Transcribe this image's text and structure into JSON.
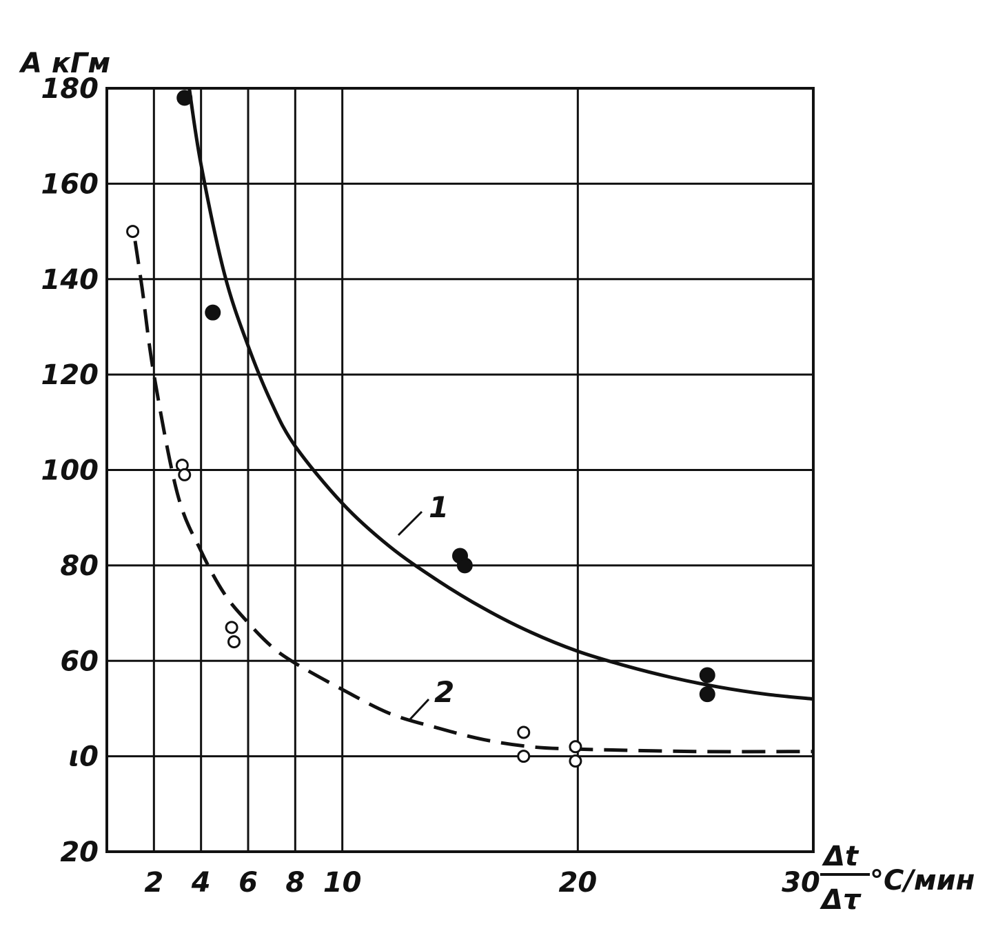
{
  "chart_data": {
    "type": "line",
    "y_axis": {
      "label": "А кГм",
      "range": [
        20,
        180
      ],
      "ticks": [
        20,
        40,
        60,
        80,
        100,
        120,
        140,
        160,
        180
      ],
      "tick_labels": [
        "20",
        "ι0",
        "60",
        "80",
        "100",
        "120",
        "140",
        "160",
        "180"
      ]
    },
    "x_axis": {
      "label_numerator": "Δt",
      "label_denominator": "Δτ",
      "unit": "°C/мин",
      "range": [
        0,
        30
      ],
      "ticks": [
        2,
        4,
        6,
        8,
        10,
        20,
        30
      ],
      "tick_labels": [
        "2",
        "4",
        "6",
        "8",
        "10",
        "20",
        "30"
      ]
    },
    "grid": true,
    "vertical_gridlines": [
      2,
      4,
      6,
      8,
      10,
      20
    ],
    "series": [
      {
        "name": "1",
        "line_style": "solid",
        "curve": [
          [
            3.5,
            180
          ],
          [
            4,
            164
          ],
          [
            5,
            141
          ],
          [
            6,
            126
          ],
          [
            7,
            114
          ],
          [
            8,
            105
          ],
          [
            10,
            93
          ],
          [
            12,
            84
          ],
          [
            14,
            77
          ],
          [
            16,
            71
          ],
          [
            18,
            66
          ],
          [
            20,
            62
          ],
          [
            22,
            59
          ],
          [
            24,
            56.5
          ],
          [
            26,
            54.5
          ],
          [
            28,
            53
          ],
          [
            30,
            52
          ]
        ],
        "points": [
          [
            3.3,
            178
          ],
          [
            4.5,
            133
          ],
          [
            15,
            82
          ],
          [
            15.2,
            80
          ],
          [
            25.5,
            57
          ],
          [
            25.5,
            53
          ]
        ],
        "marker": "filled"
      },
      {
        "name": "2",
        "line_style": "dashed",
        "curve": [
          [
            1.2,
            148
          ],
          [
            1.5,
            138
          ],
          [
            2,
            120
          ],
          [
            3,
            95
          ],
          [
            4,
            83
          ],
          [
            5,
            74
          ],
          [
            6,
            68
          ],
          [
            7,
            63
          ],
          [
            8,
            59.5
          ],
          [
            10,
            54
          ],
          [
            12,
            49
          ],
          [
            14,
            46
          ],
          [
            16,
            43.5
          ],
          [
            18,
            42
          ],
          [
            20,
            41.5
          ],
          [
            25,
            41
          ],
          [
            30,
            41
          ]
        ],
        "points": [
          [
            1.1,
            150
          ],
          [
            3.2,
            101
          ],
          [
            3.3,
            99
          ],
          [
            5.3,
            67
          ],
          [
            5.4,
            64
          ],
          [
            17.7,
            45
          ],
          [
            17.7,
            40
          ],
          [
            19.9,
            42
          ],
          [
            19.9,
            39
          ]
        ],
        "marker": "open"
      }
    ]
  }
}
